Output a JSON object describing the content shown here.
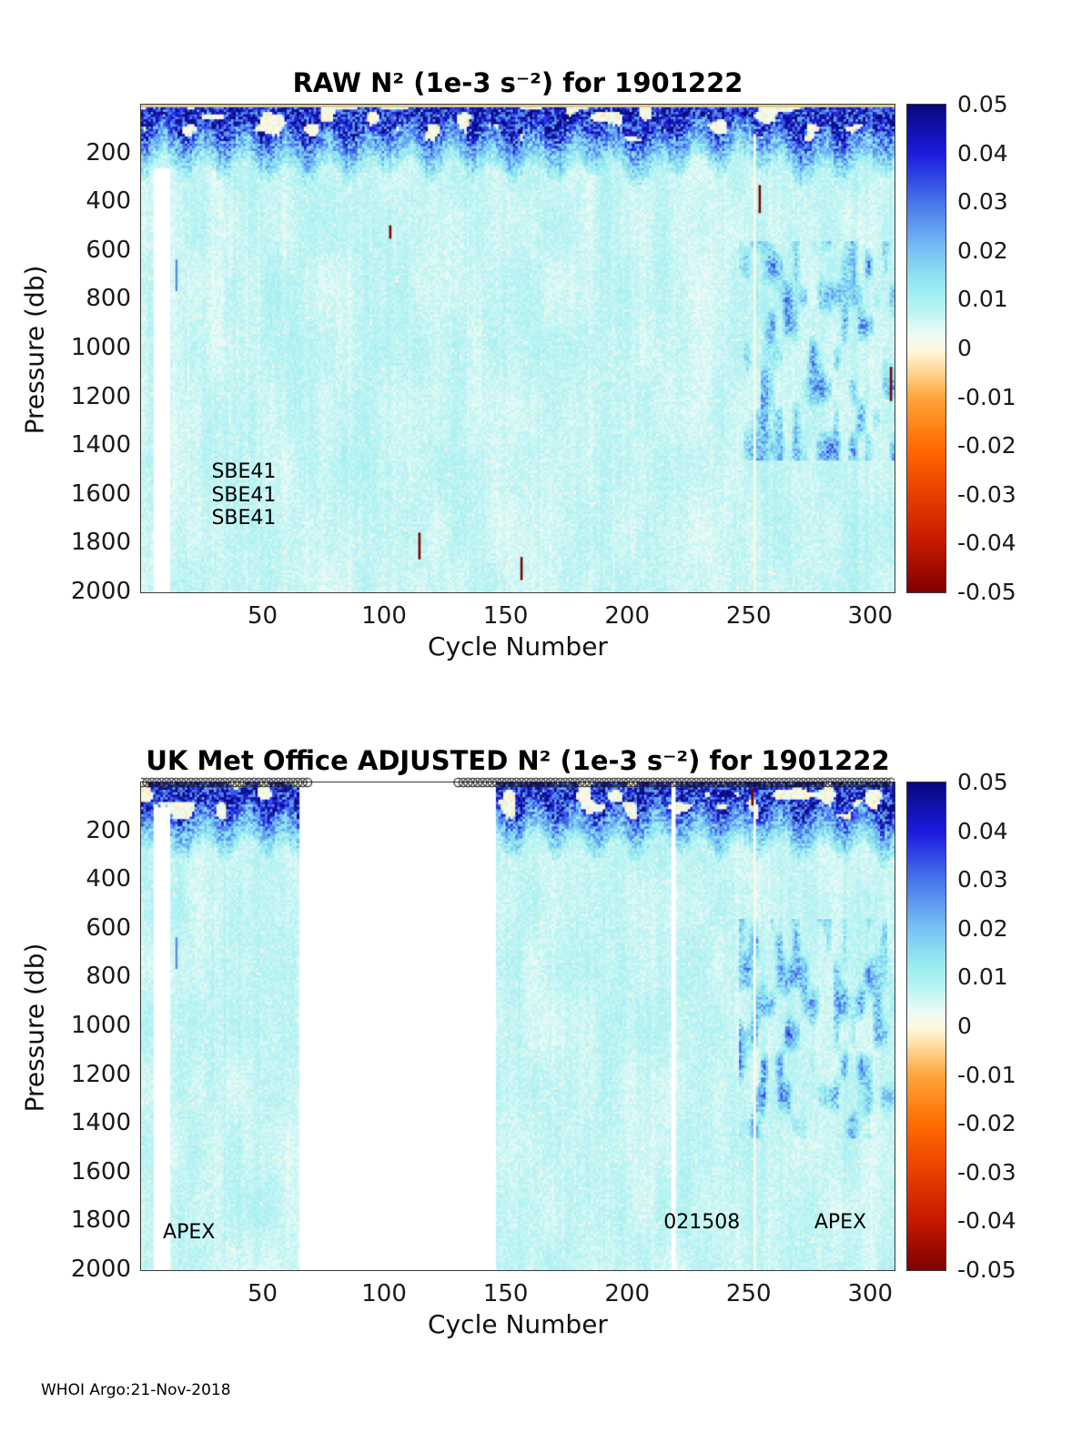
{
  "figure": {
    "footer": "WHOI Argo:21-Nov-2018"
  },
  "colormap": {
    "min": -0.05,
    "max": 0.05,
    "stops": [
      [
        -0.05,
        [
          127,
          0,
          0
        ]
      ],
      [
        -0.04,
        [
          196,
          24,
          0
        ]
      ],
      [
        -0.03,
        [
          233,
          62,
          0
        ]
      ],
      [
        -0.02,
        [
          255,
          108,
          0
        ]
      ],
      [
        -0.01,
        [
          255,
          165,
          60
        ]
      ],
      [
        -0.003,
        [
          255,
          228,
          176
        ]
      ],
      [
        0.0,
        [
          255,
          249,
          224
        ]
      ],
      [
        0.003,
        [
          236,
          251,
          246
        ]
      ],
      [
        0.008,
        [
          185,
          243,
          243
        ]
      ],
      [
        0.013,
        [
          150,
          236,
          240
        ]
      ],
      [
        0.02,
        [
          120,
          196,
          244
        ]
      ],
      [
        0.03,
        [
          72,
          118,
          235
        ]
      ],
      [
        0.04,
        [
          28,
          27,
          222
        ]
      ],
      [
        0.05,
        [
          8,
          8,
          126
        ]
      ]
    ]
  },
  "chart_data": [
    {
      "type": "heatmap",
      "title": "RAW N² (1e-3 s⁻²) for 1901222",
      "xlabel": "Cycle Number",
      "ylabel": "Pressure (db)",
      "xlim": [
        1,
        310
      ],
      "ylim": [
        0,
        2000
      ],
      "y_direction": "reversed",
      "x_ticks": [
        50,
        100,
        150,
        200,
        250,
        300
      ],
      "y_ticks": [
        200,
        400,
        600,
        800,
        1000,
        1200,
        1400,
        1600,
        1800,
        2000
      ],
      "colorbar_tick_values": [
        0.05,
        0.04,
        0.03,
        0.02,
        0.01,
        0,
        -0.01,
        -0.02,
        -0.03,
        -0.04,
        -0.05
      ],
      "colorbar_tick_labels": [
        "0.05",
        "0.04",
        "0.03",
        "0.02",
        "0.01",
        "0",
        "-0.01",
        "-0.02",
        "-0.03",
        "-0.04",
        "-0.05"
      ],
      "annotations": [
        {
          "text": "SBE41",
          "cycle": 29,
          "pressure": 1510
        },
        {
          "text": "SBE41",
          "cycle": 29,
          "pressure": 1607
        },
        {
          "text": "SBE41",
          "cycle": 29,
          "pressure": 1700
        }
      ],
      "summary": {
        "surface_layer": "high N2 0.03-0.05 (dark blue) in upper 50-250 db across all cycles",
        "interior": "low N2 ~0.005-0.01 (pale cyan) from ~300 db to 2000 db",
        "deep_right": "slightly elevated N2 (light blue mottling) cycles ~250-310 at 600-1400 db",
        "negative_spikes": "isolated dark-red negative N2 marks near cycles 103, 115, 157, 255, 309"
      },
      "render": {
        "seed": 12345,
        "gaps": [],
        "missing_left": {
          "from_cycle": 6,
          "to_cycle": 12,
          "below": 255
        },
        "pale_columns": [
          {
            "cycle": 253,
            "from": 120
          }
        ],
        "red_marks": [
          {
            "cycle": 103,
            "p0": 495,
            "p1": 550
          },
          {
            "cycle": 115,
            "p0": 1755,
            "p1": 1865
          },
          {
            "cycle": 157,
            "p0": 1855,
            "p1": 1950
          },
          {
            "cycle": 255,
            "p0": 330,
            "p1": 445
          },
          {
            "cycle": 309,
            "p0": 1075,
            "p1": 1215
          }
        ],
        "blue_marks": [
          {
            "cycle": 15,
            "p0": 635,
            "p1": 765
          }
        ],
        "top_band": true,
        "deep_mottle": true,
        "surface_markers": false,
        "marker_ranges": []
      }
    },
    {
      "type": "heatmap",
      "title": "UK Met Office  ADJUSTED N² (1e-3 s⁻²) for 1901222",
      "xlabel": "Cycle Number",
      "ylabel": "Pressure (db)",
      "xlim": [
        1,
        310
      ],
      "ylim": [
        0,
        2000
      ],
      "y_direction": "reversed",
      "x_ticks": [
        50,
        100,
        150,
        200,
        250,
        300
      ],
      "y_ticks": [
        200,
        400,
        600,
        800,
        1000,
        1200,
        1400,
        1600,
        1800,
        2000
      ],
      "colorbar_tick_values": [
        0.05,
        0.04,
        0.03,
        0.02,
        0.01,
        0,
        -0.01,
        -0.02,
        -0.03,
        -0.04,
        -0.05
      ],
      "colorbar_tick_labels": [
        "0.05",
        "0.04",
        "0.03",
        "0.02",
        "0.01",
        "0",
        "-0.01",
        "-0.02",
        "-0.03",
        "-0.04",
        "-0.05"
      ],
      "annotations": [
        {
          "text": "APEX",
          "cycle": 9,
          "pressure": 1850
        },
        {
          "text": "021508",
          "cycle": 215,
          "pressure": 1810
        },
        {
          "text": "APEX",
          "cycle": 277,
          "pressure": 1810
        }
      ],
      "summary": {
        "surface_layer": "high N2 0.03-0.05 (dark blue) in upper 50-250 db where data exist",
        "interior": "low N2 ~0.005-0.01 (pale cyan) from ~300 db to 2000 db",
        "deep_right": "slightly elevated N2 (light blue mottling) cycles ~250-310 at 600-1400 db",
        "data_gaps": "no adjusted data for cycles ~66-146 and a narrow gap near cycle 219",
        "cycle_markers": "open circle markers along the top axis for adjusted cycles ~1-69 and ~131-310"
      },
      "render": {
        "seed": 54321,
        "gaps": [
          {
            "from": 66,
            "to": 146
          },
          {
            "from": 219,
            "to": 220
          }
        ],
        "missing_left": {
          "from_cycle": 6,
          "to_cycle": 12,
          "below": 95
        },
        "pale_columns": [
          {
            "cycle": 253,
            "from": 120
          }
        ],
        "red_marks": [
          {
            "cycle": 252,
            "p0": 25,
            "p1": 95
          }
        ],
        "blue_marks": [
          {
            "cycle": 15,
            "p0": 635,
            "p1": 765
          }
        ],
        "top_band": false,
        "deep_mottle": true,
        "surface_markers": true,
        "marker_ranges": [
          [
            1,
            69
          ],
          [
            131,
            310
          ]
        ]
      }
    }
  ]
}
